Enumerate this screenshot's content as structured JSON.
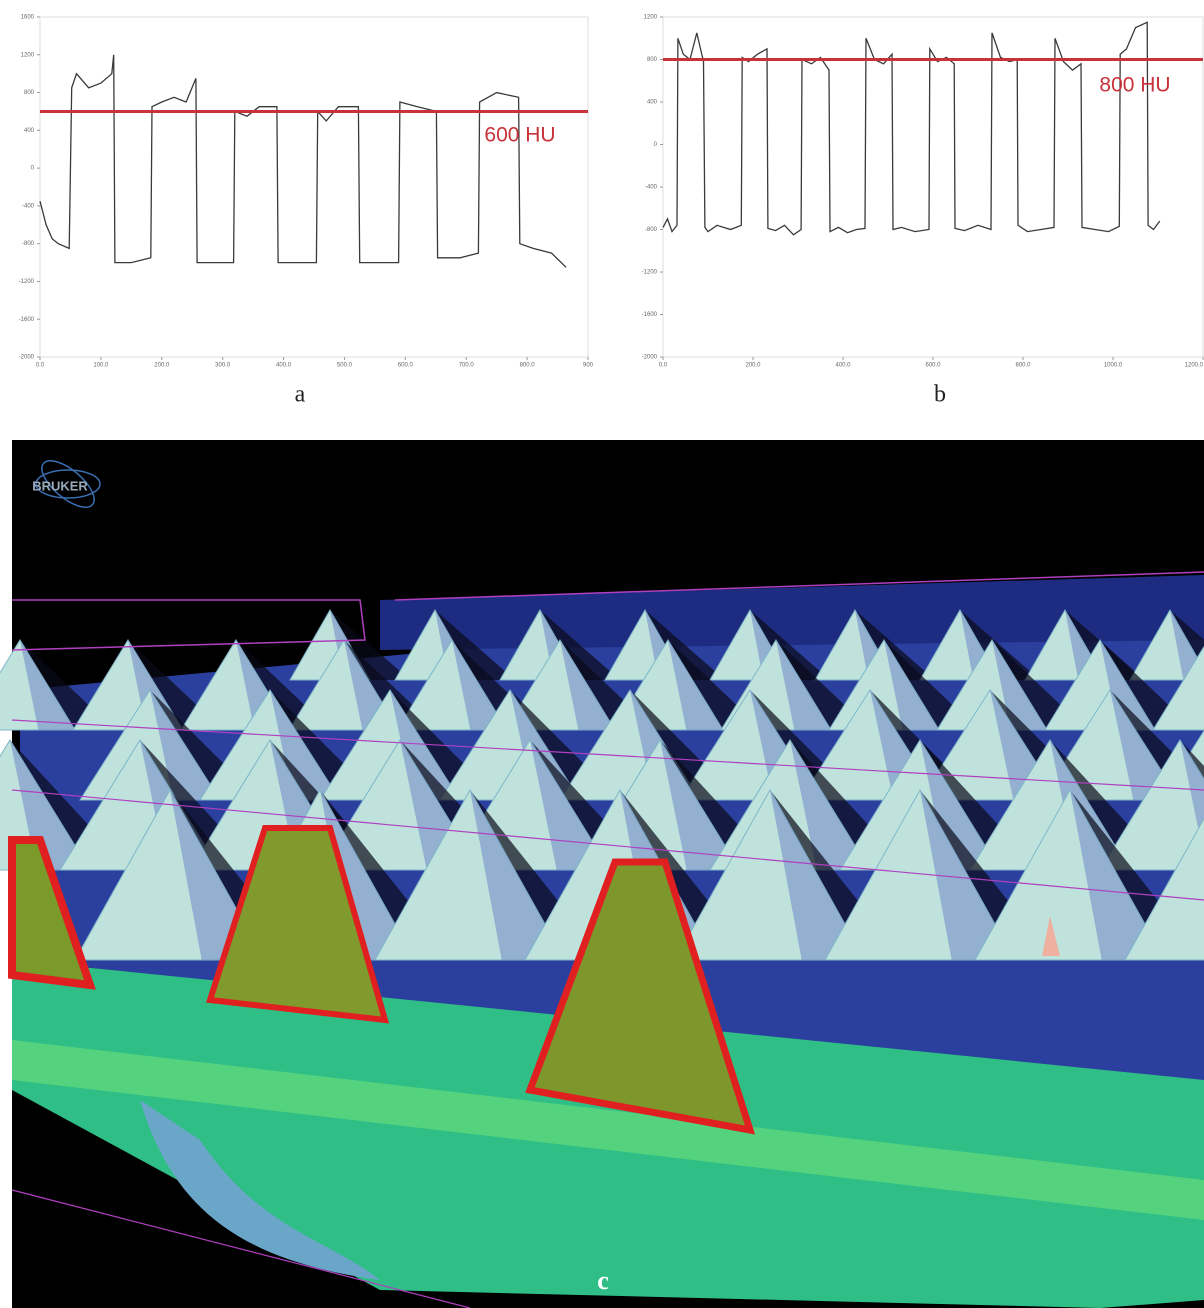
{
  "chart_data": [
    {
      "type": "line",
      "label": "a",
      "x": [
        0,
        10,
        20,
        30,
        48,
        52,
        60,
        80,
        100,
        118,
        121,
        123,
        150,
        182,
        184,
        200,
        220,
        240,
        256,
        258,
        318,
        320,
        340,
        360,
        389,
        391,
        454,
        456,
        470,
        490,
        523,
        525,
        589,
        591,
        620,
        651,
        653,
        690,
        720,
        722,
        750,
        786,
        788,
        810,
        840,
        864
      ],
      "series": [
        {
          "color": "#3a3a3a",
          "values": [
            -350,
            -600,
            -750,
            -800,
            -850,
            850,
            1000,
            850,
            900,
            1000,
            1200,
            -1000,
            -1000,
            -950,
            650,
            700,
            750,
            700,
            950,
            -1000,
            -1000,
            600,
            550,
            650,
            650,
            -1000,
            -1000,
            600,
            500,
            650,
            650,
            -1000,
            -1000,
            700,
            650,
            600,
            -950,
            -950,
            -900,
            700,
            800,
            750,
            -800,
            -850,
            -900,
            -1050
          ]
        }
      ],
      "xlim": [
        0,
        900
      ],
      "xticks": [
        {
          "value": 0,
          "label": "0.0"
        },
        {
          "value": 100,
          "label": "100.0"
        },
        {
          "value": 200,
          "label": "200.0"
        },
        {
          "value": 300,
          "label": "300.0"
        },
        {
          "value": 400,
          "label": "400.0"
        },
        {
          "value": 500,
          "label": "500.0"
        },
        {
          "value": 600,
          "label": "600.0"
        },
        {
          "value": 700,
          "label": "700.0"
        },
        {
          "value": 800,
          "label": "800.0"
        },
        900
      ],
      "ylim": [
        -2000,
        1600
      ],
      "yticks": [
        -2000,
        -1600,
        -1200,
        -800,
        -400,
        0,
        400,
        800,
        1200,
        1600
      ],
      "reference_line": {
        "value": 600,
        "label": "600 HU",
        "color": "#c8323a"
      }
    },
    {
      "type": "line",
      "label": "b",
      "x": [
        0,
        10,
        20,
        31,
        33,
        45,
        60,
        75,
        90,
        93,
        100,
        120,
        150,
        174,
        176,
        190,
        210,
        231,
        233,
        250,
        270,
        290,
        307,
        309,
        330,
        350,
        369,
        371,
        390,
        410,
        430,
        449,
        451,
        470,
        490,
        509,
        511,
        530,
        560,
        591,
        593,
        610,
        630,
        647,
        649,
        670,
        700,
        729,
        731,
        750,
        770,
        787,
        789,
        810,
        840,
        869,
        871,
        890,
        910,
        929,
        931,
        960,
        990,
        1014,
        1016,
        1030,
        1050,
        1076,
        1078,
        1090,
        1104
      ],
      "series": [
        {
          "color": "#3a3a3a",
          "values": [
            -780,
            -700,
            -820,
            -760,
            1000,
            850,
            800,
            1050,
            780,
            -780,
            -820,
            -760,
            -800,
            -760,
            820,
            780,
            850,
            900,
            -790,
            -810,
            -760,
            -850,
            -800,
            800,
            760,
            820,
            700,
            -820,
            -780,
            -830,
            -800,
            -790,
            1000,
            800,
            760,
            850,
            -800,
            -780,
            -820,
            -800,
            900,
            780,
            820,
            760,
            -790,
            -810,
            -760,
            -800,
            1050,
            820,
            780,
            800,
            -760,
            -820,
            -800,
            -780,
            1000,
            780,
            700,
            760,
            -780,
            -800,
            -820,
            -770,
            850,
            900,
            1100,
            1150,
            -760,
            -800,
            -720
          ]
        }
      ],
      "xlim": [
        0,
        1200
      ],
      "xticks": [
        {
          "value": 0,
          "label": "0.0"
        },
        {
          "value": 200,
          "label": "200.0"
        },
        {
          "value": 400,
          "label": "400.0"
        },
        {
          "value": 600,
          "label": "600.0"
        },
        {
          "value": 800,
          "label": "800.0"
        },
        {
          "value": 1000,
          "label": "1000.0"
        },
        {
          "value": 1200,
          "label": "1200.0"
        }
      ],
      "ylim": [
        -2000,
        1200
      ],
      "yticks": [
        -2000,
        -1600,
        -1200,
        -800,
        -400,
        0,
        400,
        800,
        1200
      ],
      "reference_line": {
        "value": 800,
        "label": "800 HU",
        "color": "#c8323a"
      }
    }
  ],
  "panel_c": {
    "label": "c",
    "logo": "BRUKER"
  }
}
